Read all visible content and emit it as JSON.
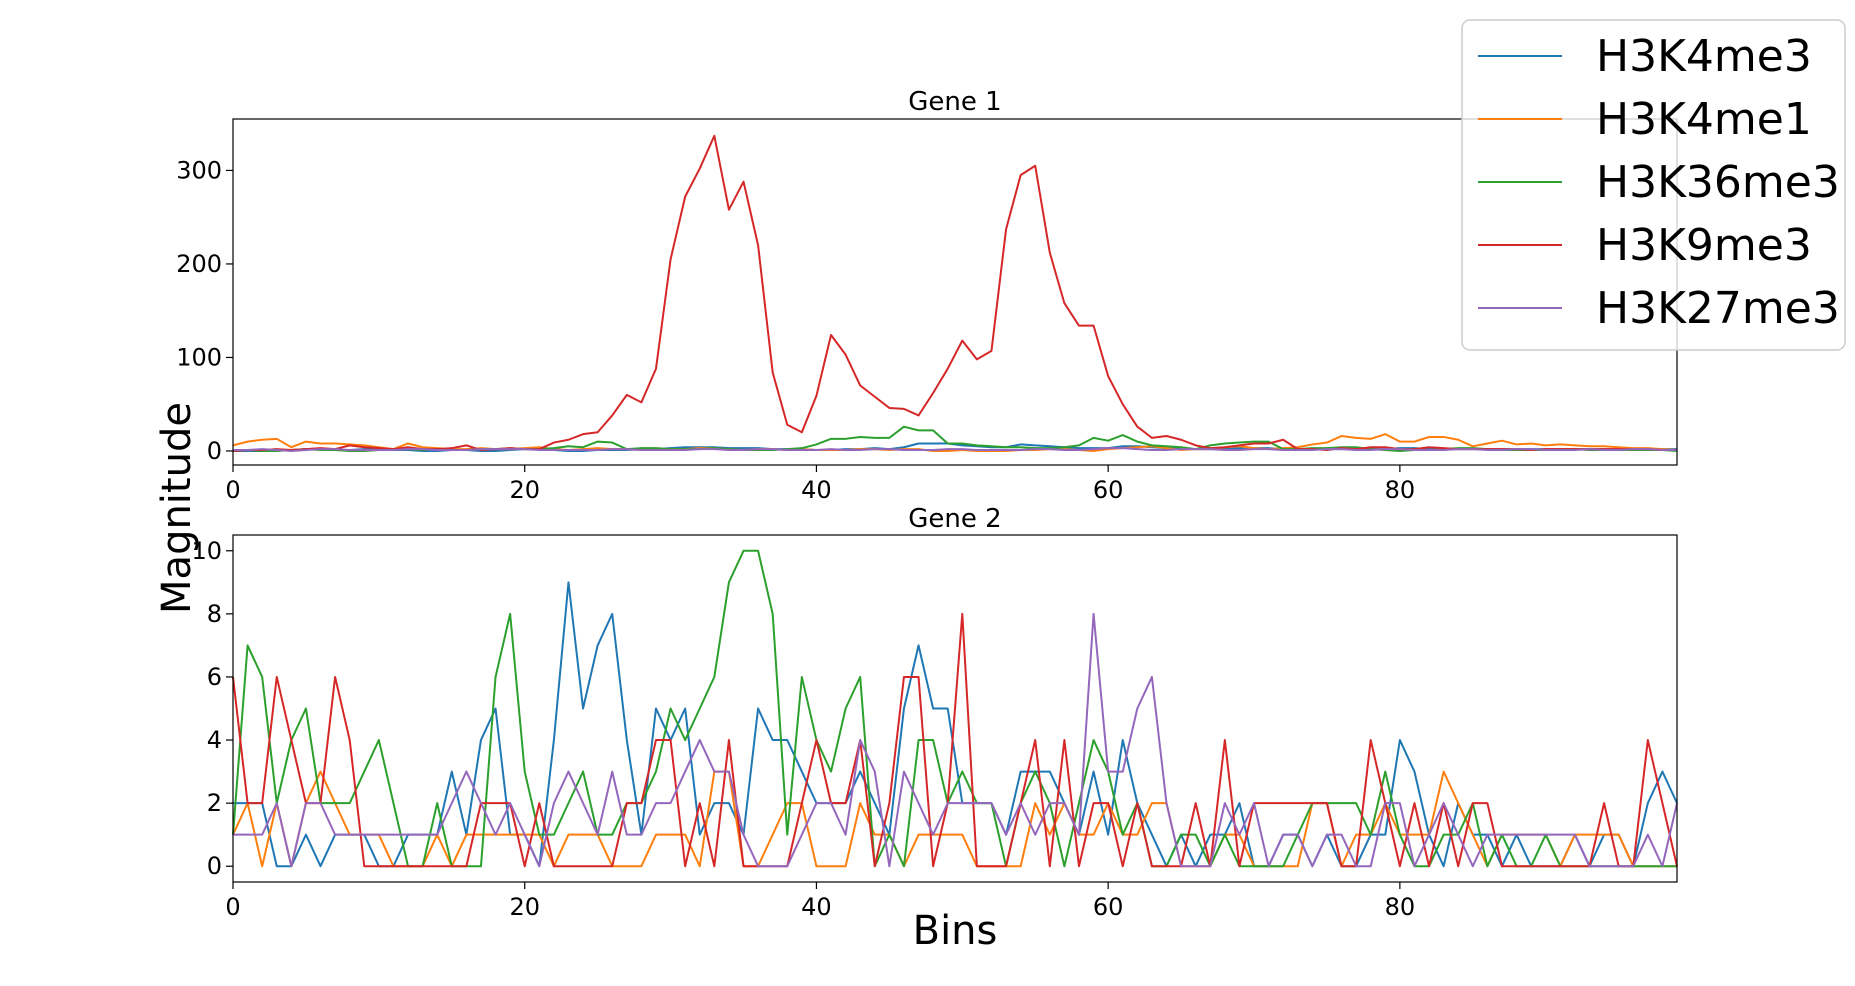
{
  "chart_data": {
    "type": "line",
    "xlabel": "Bins",
    "ylabel": "Magnitude",
    "legend": {
      "placement": "top-right",
      "entries": [
        "H3K4me3",
        "H3K4me1",
        "H3K36me3",
        "H3K9me3",
        "H3K27me3"
      ]
    },
    "colors": {
      "H3K4me3": "#1f77b4",
      "H3K4me1": "#ff7f0e",
      "H3K36me3": "#2ca02c",
      "H3K9me3": "#d62728",
      "H3K27me3": "#9467bd"
    },
    "panels": [
      {
        "title": "Gene 1",
        "xlim": [
          0,
          99
        ],
        "ylim": [
          -15,
          355
        ],
        "xticks": [
          0,
          20,
          40,
          60,
          80
        ],
        "yticks": [
          0,
          100,
          200,
          300
        ],
        "series": [
          {
            "name": "H3K4me3",
            "values": [
              0,
              0,
              0,
              1,
              1,
              2,
              2,
              1,
              1,
              2,
              2,
              1,
              1,
              0,
              0,
              1,
              1,
              0,
              0,
              1,
              2,
              2,
              1,
              0,
              0,
              1,
              1,
              1,
              2,
              2,
              3,
              4,
              4,
              4,
              3,
              3,
              3,
              2,
              2,
              2,
              1,
              1,
              2,
              2,
              3,
              2,
              4,
              8,
              8,
              8,
              6,
              5,
              4,
              4,
              7,
              6,
              5,
              4,
              3,
              3,
              3,
              5,
              5,
              4,
              3,
              3,
              2,
              2,
              2,
              3,
              3,
              3,
              2,
              2,
              2,
              2,
              2,
              2,
              2,
              2,
              3,
              3,
              2,
              2,
              2,
              2,
              2,
              2,
              2,
              2,
              2,
              2,
              2,
              2,
              2,
              2,
              2,
              2,
              2,
              2
            ]
          },
          {
            "name": "H3K4me1",
            "values": [
              6,
              10,
              12,
              13,
              4,
              10,
              8,
              8,
              7,
              6,
              4,
              2,
              8,
              4,
              3,
              2,
              2,
              3,
              2,
              2,
              3,
              4,
              2,
              1,
              2,
              3,
              2,
              2,
              1,
              2,
              2,
              2,
              3,
              3,
              2,
              1,
              2,
              2,
              1,
              2,
              1,
              1,
              1,
              2,
              2,
              1,
              2,
              2,
              0,
              0,
              1,
              0,
              0,
              0,
              1,
              1,
              2,
              2,
              1,
              0,
              2,
              3,
              4,
              5,
              3,
              1,
              2,
              2,
              4,
              5,
              3,
              2,
              3,
              4,
              7,
              9,
              16,
              14,
              13,
              18,
              10,
              10,
              15,
              15,
              12,
              5,
              8,
              11,
              7,
              8,
              6,
              7,
              6,
              5,
              5,
              4,
              3,
              3,
              2,
              1
            ]
          },
          {
            "name": "H3K36me3",
            "values": [
              0,
              1,
              0,
              0,
              1,
              2,
              1,
              1,
              0,
              0,
              1,
              2,
              2,
              1,
              2,
              1,
              1,
              2,
              2,
              3,
              2,
              2,
              3,
              5,
              4,
              10,
              9,
              2,
              3,
              3,
              2,
              2,
              2,
              3,
              2,
              1,
              1,
              1,
              2,
              3,
              7,
              13,
              13,
              15,
              14,
              14,
              26,
              22,
              22,
              8,
              8,
              6,
              5,
              4,
              4,
              3,
              3,
              4,
              6,
              14,
              11,
              17,
              10,
              6,
              5,
              4,
              2,
              6,
              8,
              9,
              10,
              10,
              2,
              2,
              3,
              3,
              4,
              4,
              2,
              1,
              0,
              1,
              1,
              2,
              3,
              3,
              2,
              1,
              1,
              1,
              1,
              2,
              2,
              1,
              1,
              1,
              1,
              1,
              1,
              0
            ]
          },
          {
            "name": "H3K9me3",
            "values": [
              0,
              1,
              1,
              2,
              1,
              2,
              3,
              2,
              6,
              4,
              3,
              2,
              4,
              2,
              2,
              3,
              6,
              1,
              2,
              3,
              2,
              2,
              9,
              12,
              18,
              20,
              38,
              60,
              52,
              88,
              205,
              272,
              302,
              337,
              258,
              288,
              220,
              84,
              28,
              20,
              59,
              124,
              103,
              70,
              58,
              46,
              45,
              38,
              62,
              88,
              118,
              98,
              107,
              237,
              295,
              305,
              212,
              158,
              134,
              134,
              80,
              50,
              26,
              14,
              16,
              12,
              6,
              3,
              4,
              6,
              8,
              8,
              12,
              2,
              2,
              1,
              3,
              2,
              4,
              4,
              2,
              2,
              4,
              3,
              2,
              2,
              2,
              2,
              2,
              1,
              2,
              2,
              2,
              2,
              2,
              2,
              2,
              2,
              1,
              1
            ]
          },
          {
            "name": "H3K27me3",
            "values": [
              1,
              1,
              2,
              1,
              0,
              1,
              2,
              2,
              1,
              1,
              1,
              1,
              2,
              2,
              1,
              1,
              1,
              2,
              2,
              2,
              2,
              1,
              1,
              1,
              1,
              1,
              2,
              2,
              1,
              1,
              1,
              1,
              2,
              2,
              1,
              1,
              2,
              2,
              1,
              1,
              1,
              2,
              1,
              1,
              2,
              2,
              1,
              1,
              1,
              2,
              2,
              1,
              1,
              1,
              1,
              2,
              2,
              1,
              1,
              2,
              3,
              3,
              2,
              1,
              1,
              2,
              2,
              2,
              1,
              1,
              2,
              2,
              1,
              1,
              1,
              2,
              2,
              1,
              1,
              2,
              2,
              1,
              1,
              1,
              2,
              2,
              1,
              1,
              2,
              2,
              1,
              1,
              1,
              2,
              1,
              1,
              2,
              2,
              1,
              1
            ]
          }
        ]
      },
      {
        "title": "Gene 2",
        "xlim": [
          0,
          99
        ],
        "ylim": [
          -0.5,
          10.5
        ],
        "xticks": [
          0,
          20,
          40,
          60,
          80
        ],
        "yticks": [
          0,
          2,
          4,
          6,
          8,
          10
        ],
        "series": [
          {
            "name": "H3K4me3",
            "values": [
              2,
              2,
              2,
              0,
              0,
              1,
              0,
              1,
              1,
              1,
              0,
              0,
              1,
              1,
              1,
              3,
              1,
              4,
              5,
              1,
              1,
              0,
              4,
              9,
              5,
              7,
              8,
              4,
              1,
              5,
              4,
              5,
              1,
              2,
              2,
              1,
              5,
              4,
              4,
              3,
              2,
              2,
              2,
              3,
              2,
              1,
              5,
              7,
              5,
              5,
              2,
              2,
              2,
              1,
              3,
              3,
              3,
              2,
              1,
              3,
              1,
              4,
              2,
              1,
              0,
              1,
              0,
              1,
              1,
              2,
              0,
              0,
              1,
              1,
              0,
              1,
              0,
              0,
              1,
              1,
              4,
              3,
              1,
              0,
              2,
              1,
              1,
              0,
              1,
              0,
              0,
              0,
              1,
              0,
              1,
              1,
              0,
              2,
              3,
              2
            ]
          },
          {
            "name": "H3K4me1",
            "values": [
              1,
              2,
              0,
              2,
              0,
              2,
              3,
              2,
              1,
              1,
              1,
              0,
              0,
              0,
              1,
              0,
              1,
              1,
              1,
              1,
              1,
              1,
              0,
              1,
              1,
              1,
              0,
              0,
              0,
              1,
              1,
              1,
              0,
              3,
              3,
              0,
              0,
              1,
              2,
              2,
              0,
              0,
              0,
              2,
              1,
              1,
              0,
              1,
              1,
              1,
              1,
              0,
              0,
              0,
              0,
              2,
              1,
              2,
              1,
              1,
              2,
              1,
              1,
              2,
              2,
              0,
              0,
              0,
              1,
              1,
              0,
              0,
              0,
              0,
              2,
              2,
              0,
              1,
              1,
              2,
              1,
              1,
              1,
              3,
              2,
              1,
              0,
              1,
              1,
              1,
              1,
              0,
              1,
              1,
              1,
              1,
              0,
              0,
              0,
              0
            ]
          },
          {
            "name": "H3K36me3",
            "values": [
              1,
              7,
              6,
              2,
              4,
              5,
              2,
              2,
              2,
              3,
              4,
              2,
              0,
              0,
              2,
              0,
              0,
              0,
              6,
              8,
              3,
              1,
              1,
              2,
              3,
              1,
              1,
              2,
              2,
              3,
              5,
              4,
              5,
              6,
              9,
              10,
              10,
              8,
              1,
              6,
              4,
              3,
              5,
              6,
              0,
              1,
              0,
              4,
              4,
              2,
              3,
              2,
              2,
              0,
              2,
              3,
              2,
              0,
              2,
              4,
              3,
              1,
              2,
              0,
              0,
              1,
              1,
              0,
              1,
              0,
              0,
              0,
              0,
              1,
              2,
              2,
              2,
              2,
              1,
              3,
              1,
              0,
              0,
              1,
              1,
              2,
              0,
              1,
              0,
              0,
              1,
              0,
              0,
              0,
              0,
              0,
              0,
              0,
              0,
              0
            ]
          },
          {
            "name": "H3K9me3",
            "values": [
              6,
              2,
              2,
              6,
              4,
              2,
              2,
              6,
              4,
              0,
              0,
              0,
              0,
              0,
              0,
              0,
              0,
              2,
              2,
              2,
              0,
              2,
              0,
              0,
              0,
              0,
              0,
              2,
              2,
              4,
              4,
              0,
              2,
              0,
              4,
              0,
              0,
              0,
              0,
              2,
              4,
              2,
              2,
              4,
              0,
              2,
              6,
              6,
              0,
              2,
              8,
              0,
              0,
              0,
              2,
              4,
              0,
              4,
              0,
              2,
              2,
              0,
              2,
              0,
              0,
              0,
              2,
              0,
              4,
              0,
              2,
              2,
              2,
              2,
              2,
              2,
              0,
              0,
              4,
              2,
              0,
              2,
              0,
              2,
              0,
              2,
              2,
              0,
              0,
              0,
              0,
              0,
              0,
              0,
              2,
              0,
              0,
              4,
              2,
              0
            ]
          },
          {
            "name": "H3K27me3",
            "values": [
              1,
              1,
              1,
              2,
              0,
              2,
              2,
              1,
              1,
              1,
              1,
              1,
              1,
              1,
              1,
              2,
              3,
              2,
              1,
              2,
              1,
              0,
              2,
              3,
              2,
              1,
              3,
              1,
              1,
              2,
              2,
              3,
              4,
              3,
              3,
              1,
              0,
              0,
              0,
              1,
              2,
              2,
              1,
              4,
              3,
              0,
              3,
              2,
              1,
              2,
              2,
              2,
              2,
              1,
              2,
              1,
              2,
              2,
              1,
              8,
              3,
              3,
              5,
              6,
              2,
              0,
              0,
              0,
              2,
              1,
              2,
              0,
              1,
              1,
              0,
              1,
              1,
              0,
              0,
              2,
              2,
              0,
              1,
              2,
              1,
              0,
              1,
              1,
              1,
              1,
              1,
              1,
              1,
              0,
              0,
              0,
              0,
              1,
              0,
              2
            ]
          }
        ]
      }
    ]
  }
}
